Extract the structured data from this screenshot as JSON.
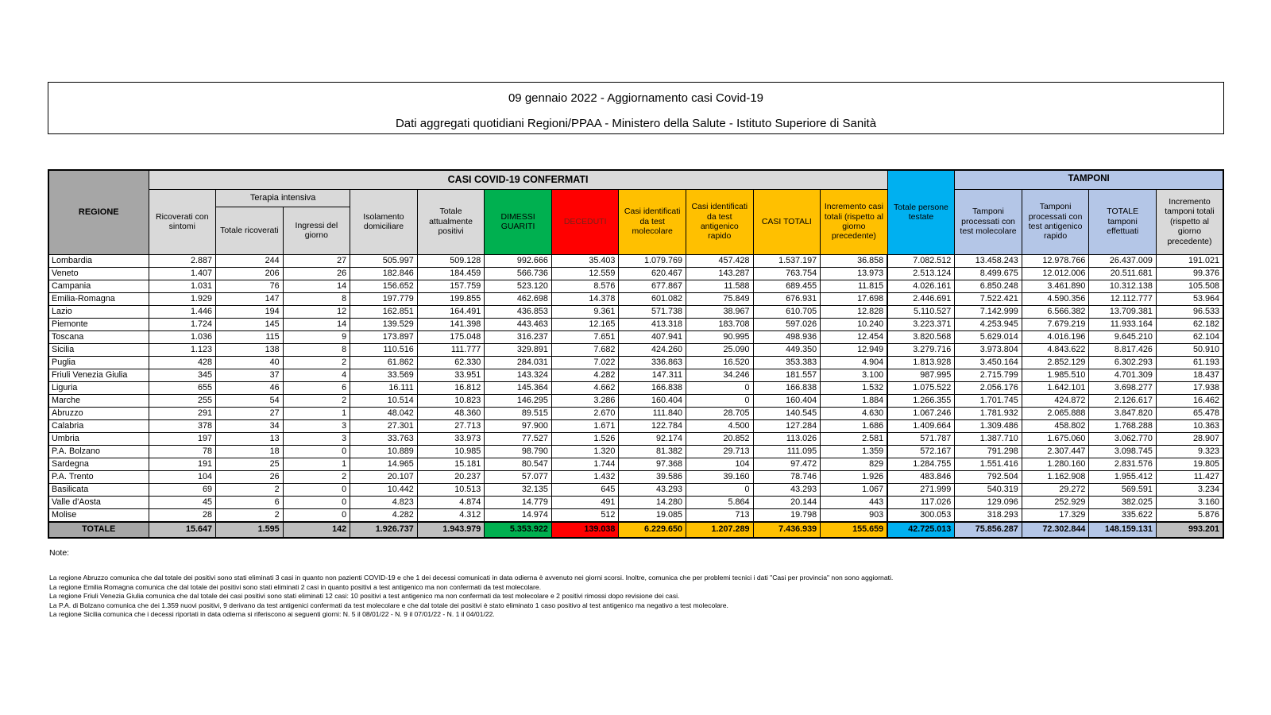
{
  "title": {
    "line1": "09 gennaio 2022 - Aggiornamento casi Covid-19",
    "line2": "Dati aggregati quotidiani Regioni/PPAA - Ministero della Salute - Istituto Superiore di Sanità"
  },
  "colors": {
    "green": "#00B050",
    "red": "#FF0000",
    "gold": "#FFC000",
    "cyan": "#00B0F0",
    "light_blue": "#B4C6E7",
    "gray_dark": "#A6A6A6",
    "gray_light": "#D9D9D9",
    "gray_mid": "#BFBFBF",
    "deceduti_text": "#7B2018"
  },
  "table": {
    "region_header": "REGIONE",
    "group_confirmed": "CASI COVID-19 CONFERMATI",
    "group_terapia_intensiva": "Terapia intensiva",
    "group_tamponi": "TAMPONI",
    "columns": [
      "Ricoverati con sintomi",
      "Totale ricoverati",
      "Ingressi del giorno",
      "Isolamento domiciliare",
      "Totale attualmente positivi",
      "DIMESSI GUARITI",
      "DECEDUTI",
      "Casi identificati da test molecolare",
      "Casi identificati da test antigenico rapido",
      "CASI TOTALI",
      "Incremento casi totali (rispetto al giorno precedente)",
      "Totale persone testate",
      "Tamponi processati con test molecolare",
      "Tamponi processati con test antigenico rapido",
      "TOTALE tamponi effettuati",
      "Incremento tamponi totali (rispetto al giorno precedente)"
    ],
    "rows": [
      {
        "region": "Lombardia",
        "values": [
          "2.887",
          "244",
          "27",
          "505.997",
          "509.128",
          "992.666",
          "35.403",
          "1.079.769",
          "457.428",
          "1.537.197",
          "36.858",
          "7.082.512",
          "13.458.243",
          "12.978.766",
          "26.437.009",
          "191.021"
        ]
      },
      {
        "region": "Veneto",
        "values": [
          "1.407",
          "206",
          "26",
          "182.846",
          "184.459",
          "566.736",
          "12.559",
          "620.467",
          "143.287",
          "763.754",
          "13.973",
          "2.513.124",
          "8.499.675",
          "12.012.006",
          "20.511.681",
          "99.376"
        ]
      },
      {
        "region": "Campania",
        "values": [
          "1.031",
          "76",
          "14",
          "156.652",
          "157.759",
          "523.120",
          "8.576",
          "677.867",
          "11.588",
          "689.455",
          "11.815",
          "4.026.161",
          "6.850.248",
          "3.461.890",
          "10.312.138",
          "105.508"
        ]
      },
      {
        "region": "Emilia-Romagna",
        "values": [
          "1.929",
          "147",
          "8",
          "197.779",
          "199.855",
          "462.698",
          "14.378",
          "601.082",
          "75.849",
          "676.931",
          "17.698",
          "2.446.691",
          "7.522.421",
          "4.590.356",
          "12.112.777",
          "53.964"
        ]
      },
      {
        "region": "Lazio",
        "values": [
          "1.446",
          "194",
          "12",
          "162.851",
          "164.491",
          "436.853",
          "9.361",
          "571.738",
          "38.967",
          "610.705",
          "12.828",
          "5.110.527",
          "7.142.999",
          "6.566.382",
          "13.709.381",
          "96.533"
        ]
      },
      {
        "region": "Piemonte",
        "values": [
          "1.724",
          "145",
          "14",
          "139.529",
          "141.398",
          "443.463",
          "12.165",
          "413.318",
          "183.708",
          "597.026",
          "10.240",
          "3.223.371",
          "4.253.945",
          "7.679.219",
          "11.933.164",
          "62.182"
        ]
      },
      {
        "region": "Toscana",
        "values": [
          "1.036",
          "115",
          "9",
          "173.897",
          "175.048",
          "316.237",
          "7.651",
          "407.941",
          "90.995",
          "498.936",
          "12.454",
          "3.820.568",
          "5.629.014",
          "4.016.196",
          "9.645.210",
          "62.104"
        ]
      },
      {
        "region": "Sicilia",
        "values": [
          "1.123",
          "138",
          "8",
          "110.516",
          "111.777",
          "329.891",
          "7.682",
          "424.260",
          "25.090",
          "449.350",
          "12.949",
          "3.279.716",
          "3.973.804",
          "4.843.622",
          "8.817.426",
          "50.910"
        ]
      },
      {
        "region": "Puglia",
        "values": [
          "428",
          "40",
          "2",
          "61.862",
          "62.330",
          "284.031",
          "7.022",
          "336.863",
          "16.520",
          "353.383",
          "4.904",
          "1.813.928",
          "3.450.164",
          "2.852.129",
          "6.302.293",
          "61.193"
        ]
      },
      {
        "region": "Friuli Venezia Giulia",
        "values": [
          "345",
          "37",
          "4",
          "33.569",
          "33.951",
          "143.324",
          "4.282",
          "147.311",
          "34.246",
          "181.557",
          "3.100",
          "987.995",
          "2.715.799",
          "1.985.510",
          "4.701.309",
          "18.437"
        ]
      },
      {
        "region": "Liguria",
        "values": [
          "655",
          "46",
          "6",
          "16.111",
          "16.812",
          "145.364",
          "4.662",
          "166.838",
          "0",
          "166.838",
          "1.532",
          "1.075.522",
          "2.056.176",
          "1.642.101",
          "3.698.277",
          "17.938"
        ]
      },
      {
        "region": "Marche",
        "values": [
          "255",
          "54",
          "2",
          "10.514",
          "10.823",
          "146.295",
          "3.286",
          "160.404",
          "0",
          "160.404",
          "1.884",
          "1.266.355",
          "1.701.745",
          "424.872",
          "2.126.617",
          "16.462"
        ]
      },
      {
        "region": "Abruzzo",
        "values": [
          "291",
          "27",
          "1",
          "48.042",
          "48.360",
          "89.515",
          "2.670",
          "111.840",
          "28.705",
          "140.545",
          "4.630",
          "1.067.246",
          "1.781.932",
          "2.065.888",
          "3.847.820",
          "65.478"
        ]
      },
      {
        "region": "Calabria",
        "values": [
          "378",
          "34",
          "3",
          "27.301",
          "27.713",
          "97.900",
          "1.671",
          "122.784",
          "4.500",
          "127.284",
          "1.686",
          "1.409.664",
          "1.309.486",
          "458.802",
          "1.768.288",
          "10.363"
        ]
      },
      {
        "region": "Umbria",
        "values": [
          "197",
          "13",
          "3",
          "33.763",
          "33.973",
          "77.527",
          "1.526",
          "92.174",
          "20.852",
          "113.026",
          "2.581",
          "571.787",
          "1.387.710",
          "1.675.060",
          "3.062.770",
          "28.907"
        ]
      },
      {
        "region": "P.A. Bolzano",
        "values": [
          "78",
          "18",
          "0",
          "10.889",
          "10.985",
          "98.790",
          "1.320",
          "81.382",
          "29.713",
          "111.095",
          "1.359",
          "572.167",
          "791.298",
          "2.307.447",
          "3.098.745",
          "9.323"
        ]
      },
      {
        "region": "Sardegna",
        "values": [
          "191",
          "25",
          "1",
          "14.965",
          "15.181",
          "80.547",
          "1.744",
          "97.368",
          "104",
          "97.472",
          "829",
          "1.284.755",
          "1.551.416",
          "1.280.160",
          "2.831.576",
          "19.805"
        ]
      },
      {
        "region": "P.A. Trento",
        "values": [
          "104",
          "26",
          "2",
          "20.107",
          "20.237",
          "57.077",
          "1.432",
          "39.586",
          "39.160",
          "78.746",
          "1.926",
          "483.846",
          "792.504",
          "1.162.908",
          "1.955.412",
          "11.427"
        ]
      },
      {
        "region": "Basilicata",
        "values": [
          "69",
          "2",
          "0",
          "10.442",
          "10.513",
          "32.135",
          "645",
          "43.293",
          "0",
          "43.293",
          "1.067",
          "271.999",
          "540.319",
          "29.272",
          "569.591",
          "3.234"
        ]
      },
      {
        "region": "Valle d'Aosta",
        "values": [
          "45",
          "6",
          "0",
          "4.823",
          "4.874",
          "14.779",
          "491",
          "14.280",
          "5.864",
          "20.144",
          "443",
          "117.026",
          "129.096",
          "252.929",
          "382.025",
          "3.160"
        ]
      },
      {
        "region": "Molise",
        "values": [
          "28",
          "2",
          "0",
          "4.282",
          "4.312",
          "14.974",
          "512",
          "19.085",
          "713",
          "19.798",
          "903",
          "300.053",
          "318.293",
          "17.329",
          "335.622",
          "5.876"
        ]
      }
    ],
    "total_row": {
      "region": "TOTALE",
      "values": [
        "15.647",
        "1.595",
        "142",
        "1.926.737",
        "1.943.979",
        "5.353.922",
        "139.038",
        "6.229.650",
        "1.207.289",
        "7.436.939",
        "155.659",
        "42.725.013",
        "75.856.287",
        "72.302.844",
        "148.159.131",
        "993.201"
      ]
    }
  },
  "notes": {
    "heading": "Note:",
    "lines": [
      "La regione Abruzzo comunica che dal totale dei positivi sono stati eliminati 3 casi in quanto non pazienti COVID-19 e che 1 dei decessi comunicati in data odierna è avvenuto nei giorni scorsi. Inoltre, comunica che per problemi tecnici i dati \"Casi per provincia\" non sono aggiornati.",
      "La regione Emilia Romagna comunica che dal totale dei positivi sono stati eliminati 2 casi in quanto positivi a test antigenico ma non confermati da test molecolare.",
      "La regione Friuli Venezia Giulia comunica che dal totale dei casi positivi sono stati eliminati 12 casi: 10 positivi a test antigenico ma non confermati da test molecolare e 2 positivi rimossi dopo revisione dei casi.",
      "La P.A. di Bolzano comunica che dei 1.359 nuovi positivi, 9 derivano da test antigenici confermati da test molecolare e che dal totale dei positivi è stato eliminato 1 caso positivo al test antigenico ma negativo a test molecolare.",
      "La regione Sicilia comunica che i decessi riportati in data odierna si riferiscono ai seguenti giorni: N. 5 il 08/01/22 - N. 9 il 07/01/22 - N. 1 il 04/01/22."
    ]
  }
}
